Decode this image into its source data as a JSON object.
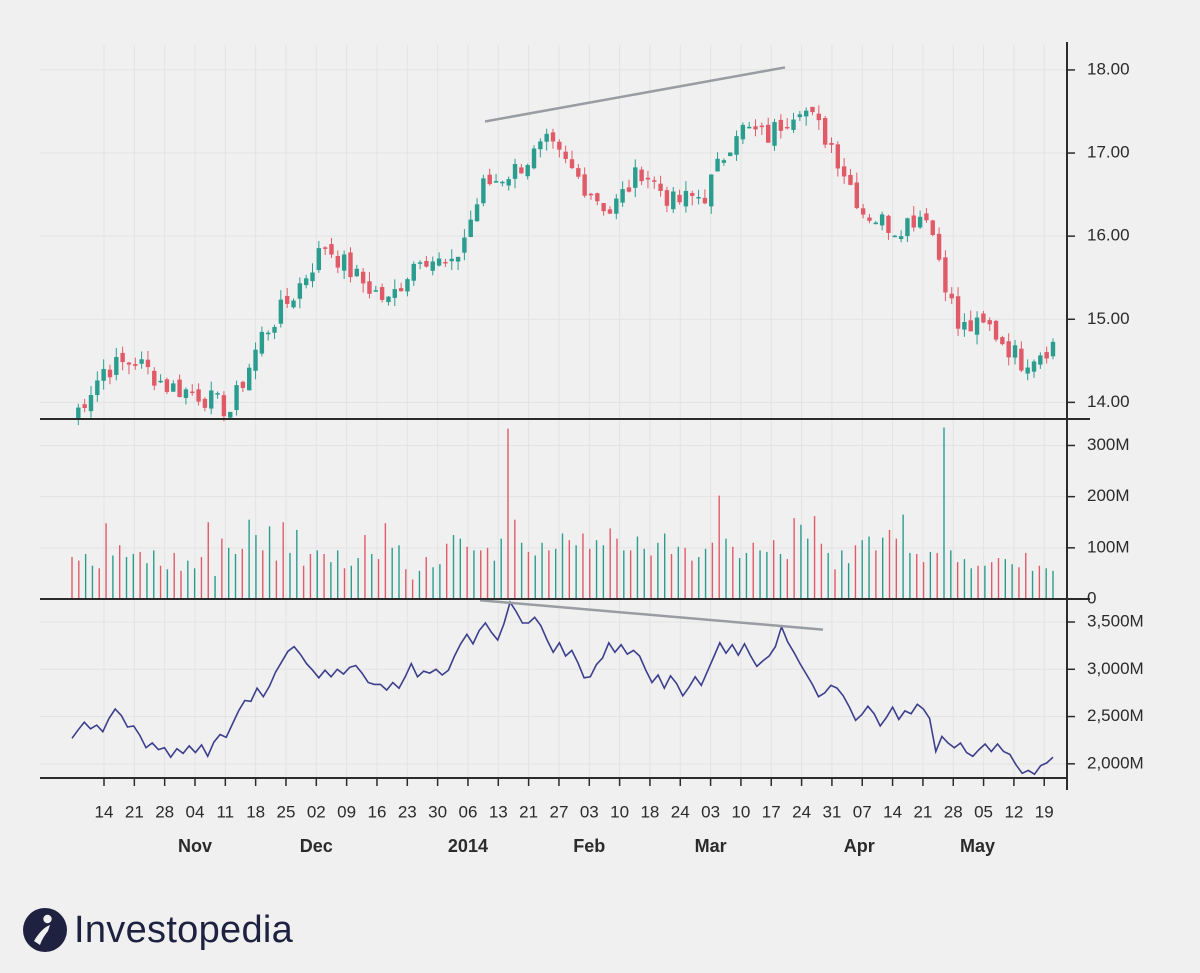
{
  "brand": {
    "name": "Investopedia"
  },
  "colors": {
    "up": "#2a9d8f",
    "down": "#e05a68",
    "obv": "#3b3f8c",
    "trend": "#9a9ca3",
    "axis": "#2b2b2b",
    "background": "#f0f0f0"
  },
  "chart_data": [
    {
      "type": "candlestick",
      "panel": "price",
      "title": "",
      "ylim": [
        13.8,
        18.3
      ],
      "y_ticks": [
        "14.00",
        "15.00",
        "16.00",
        "17.00",
        "18.00"
      ],
      "y_tick_values": [
        14,
        15,
        16,
        17,
        18
      ],
      "grid": true,
      "weekly_close": [
        13.8,
        14.4,
        14.5,
        14.2,
        14.1,
        13.9,
        14.8,
        15.3,
        15.9,
        15.5,
        15.2,
        15.8,
        15.6,
        16.6,
        16.8,
        17.1,
        16.7,
        16.3,
        16.8,
        16.4,
        16.5,
        17.3,
        17.2,
        17.6,
        17.1,
        16.3,
        16.1,
        16.3,
        14.9,
        14.9,
        14.5,
        14.7
      ],
      "trendline": {
        "from": {
          "date": "Jan 13",
          "value": 17.38
        },
        "to": {
          "date": "Mar 19",
          "value": 18.03
        }
      }
    },
    {
      "type": "bar",
      "panel": "volume",
      "ylim": [
        0,
        340
      ],
      "unit": "M",
      "y_ticks": [
        "0",
        "100M",
        "200M",
        "300M"
      ],
      "y_tick_values": [
        0,
        100,
        200,
        300
      ],
      "volumes_m": [
        82,
        75,
        88,
        65,
        60,
        148,
        85,
        105,
        82,
        88,
        92,
        70,
        95,
        65,
        58,
        90,
        55,
        75,
        60,
        82,
        150,
        45,
        118,
        100,
        88,
        98,
        155,
        125,
        95,
        142,
        75,
        150,
        90,
        135,
        65,
        88,
        95,
        88,
        72,
        95,
        60,
        65,
        80,
        125,
        88,
        78,
        148,
        100,
        105,
        58,
        38,
        55,
        82,
        62,
        68,
        108,
        125,
        118,
        102,
        95,
        95,
        100,
        75,
        118,
        333,
        155,
        110,
        92,
        85,
        110,
        95,
        98,
        128,
        115,
        105,
        128,
        98,
        115,
        105,
        138,
        118,
        95,
        95,
        122,
        98,
        85,
        110,
        128,
        88,
        102,
        100,
        75,
        82,
        98,
        110,
        202,
        118,
        102,
        80,
        90,
        110,
        95,
        92,
        115,
        88,
        78,
        158,
        145,
        118,
        162,
        108,
        90,
        58,
        95,
        70,
        105,
        115,
        122,
        95,
        120,
        135,
        118,
        165,
        90,
        88,
        72,
        92,
        90,
        335,
        95,
        72,
        78,
        60,
        65,
        65,
        72,
        80,
        78,
        68,
        62,
        90,
        55,
        65,
        60,
        55
      ]
    },
    {
      "type": "line",
      "panel": "obv",
      "ylim": [
        1850,
        3680
      ],
      "unit": "M",
      "y_ticks": [
        "2,000M",
        "2,500M",
        "3,000M",
        "3,500M"
      ],
      "y_tick_values": [
        2000,
        2500,
        3000,
        3500
      ],
      "series": [
        {
          "name": "",
          "values": [
            2270,
            2360,
            2440,
            2370,
            2410,
            2340,
            2480,
            2580,
            2510,
            2390,
            2400,
            2300,
            2170,
            2220,
            2150,
            2170,
            2070,
            2160,
            2110,
            2190,
            2120,
            2200,
            2080,
            2230,
            2310,
            2280,
            2420,
            2560,
            2670,
            2660,
            2800,
            2710,
            2820,
            2970,
            3080,
            3190,
            3240,
            3160,
            3060,
            2990,
            2910,
            2990,
            2920,
            3000,
            2950,
            3020,
            3040,
            2960,
            2860,
            2840,
            2840,
            2780,
            2860,
            2800,
            2920,
            3060,
            2920,
            2980,
            2960,
            3000,
            2940,
            2990,
            3140,
            3270,
            3370,
            3270,
            3410,
            3490,
            3390,
            3310,
            3480,
            3710,
            3610,
            3490,
            3490,
            3550,
            3460,
            3310,
            3180,
            3280,
            3140,
            3200,
            3070,
            2910,
            2920,
            3050,
            3120,
            3280,
            3180,
            3260,
            3160,
            3200,
            3140,
            2990,
            2860,
            2940,
            2800,
            2930,
            2850,
            2720,
            2810,
            2920,
            2830,
            2980,
            3130,
            3280,
            3170,
            3260,
            3150,
            3270,
            3140,
            3030,
            3090,
            3140,
            3240,
            3450,
            3290,
            3180,
            3060,
            2950,
            2840,
            2710,
            2750,
            2830,
            2800,
            2720,
            2600,
            2460,
            2520,
            2610,
            2530,
            2400,
            2490,
            2600,
            2470,
            2560,
            2530,
            2630,
            2580,
            2480,
            2130,
            2290,
            2220,
            2170,
            2220,
            2120,
            2080,
            2150,
            2210,
            2130,
            2210,
            2130,
            2100,
            1990,
            1900,
            1930,
            1890,
            1980,
            2010,
            2070
          ]
        }
      ],
      "trendline": {
        "from": {
          "date": "Jan 13",
          "value": 3730
        },
        "to": {
          "date": "Mar 31",
          "value": 3420
        }
      }
    }
  ],
  "x_axis": {
    "day_ticks": [
      "14",
      "21",
      "28",
      "04",
      "11",
      "18",
      "25",
      "02",
      "09",
      "16",
      "23",
      "30",
      "06",
      "13",
      "21",
      "27",
      "03",
      "10",
      "18",
      "24",
      "03",
      "10",
      "17",
      "24",
      "31",
      "07",
      "14",
      "21",
      "28",
      "05",
      "12",
      "19"
    ],
    "months": [
      {
        "label": "Nov",
        "tick_index": 3
      },
      {
        "label": "Dec",
        "tick_index": 7
      },
      {
        "label": "2014",
        "tick_index": 12
      },
      {
        "label": "Feb",
        "tick_index": 16
      },
      {
        "label": "Mar",
        "tick_index": 20
      },
      {
        "label": "Apr",
        "tick_index": 24.9
      },
      {
        "label": "May",
        "tick_index": 28.8
      }
    ]
  }
}
